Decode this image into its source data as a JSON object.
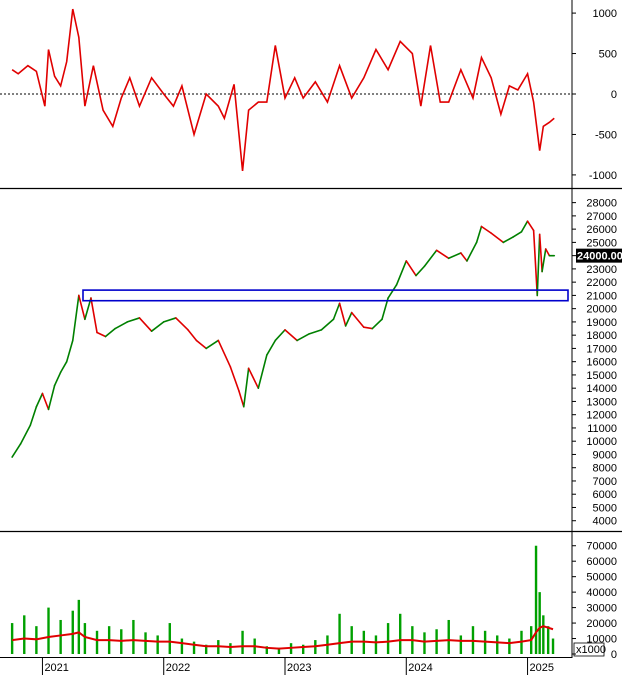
{
  "chart_data": [
    {
      "panel": "oscillator",
      "type": "line",
      "color": "#e00000",
      "yticks": [
        1000,
        500,
        0,
        -500,
        -1000
      ],
      "ylim": [
        -1100,
        1100
      ],
      "zero_line": "dashed",
      "x": [
        2020.75,
        2020.8,
        2020.88,
        2020.95,
        2021.02,
        2021.05,
        2021.1,
        2021.15,
        2021.2,
        2021.25,
        2021.3,
        2021.35,
        2021.42,
        2021.5,
        2021.58,
        2021.65,
        2021.72,
        2021.8,
        2021.9,
        2022.0,
        2022.08,
        2022.15,
        2022.25,
        2022.35,
        2022.45,
        2022.5,
        2022.58,
        2022.65,
        2022.7,
        2022.78,
        2022.85,
        2022.92,
        2023.0,
        2023.08,
        2023.15,
        2023.25,
        2023.35,
        2023.45,
        2023.55,
        2023.65,
        2023.75,
        2023.85,
        2023.95,
        2024.05,
        2024.12,
        2024.2,
        2024.28,
        2024.35,
        2024.45,
        2024.55,
        2024.62,
        2024.7,
        2024.78,
        2024.85,
        2024.92,
        2025.0,
        2025.05,
        2025.1,
        2025.13,
        2025.18,
        2025.22
      ],
      "values": [
        300,
        250,
        350,
        280,
        -150,
        550,
        220,
        100,
        400,
        1050,
        700,
        -150,
        350,
        -200,
        -400,
        -50,
        200,
        -150,
        200,
        0,
        -150,
        100,
        -500,
        0,
        -150,
        -300,
        120,
        -950,
        -200,
        -100,
        -100,
        600,
        -50,
        200,
        -50,
        150,
        -100,
        350,
        -50,
        200,
        550,
        300,
        650,
        500,
        -150,
        600,
        -100,
        -100,
        300,
        -50,
        450,
        200,
        -250,
        100,
        50,
        250,
        -100,
        -700,
        -400,
        -350,
        -300
      ]
    },
    {
      "panel": "price",
      "type": "line",
      "color": "#008000",
      "down_color": "#e00000",
      "yticks": [
        28000,
        27000,
        26000,
        25000,
        24000,
        23000,
        22000,
        21000,
        20000,
        19000,
        18000,
        17000,
        16000,
        15000,
        14000,
        13000,
        12000,
        11000,
        10000,
        9000,
        8000,
        7000,
        6000,
        5000,
        4000
      ],
      "ylim": [
        3300,
        28500
      ],
      "last_value_label": "24000.00",
      "support_zone": [
        20600,
        21400
      ],
      "x": [
        2020.75,
        2020.82,
        2020.9,
        2020.95,
        2021.0,
        2021.05,
        2021.1,
        2021.15,
        2021.2,
        2021.25,
        2021.3,
        2021.35,
        2021.4,
        2021.45,
        2021.52,
        2021.6,
        2021.7,
        2021.8,
        2021.9,
        2022.0,
        2022.1,
        2022.2,
        2022.27,
        2022.35,
        2022.45,
        2022.55,
        2022.62,
        2022.66,
        2022.7,
        2022.78,
        2022.85,
        2022.92,
        2023.0,
        2023.1,
        2023.2,
        2023.3,
        2023.4,
        2023.45,
        2023.5,
        2023.55,
        2023.65,
        2023.72,
        2023.8,
        2023.85,
        2023.92,
        2024.0,
        2024.08,
        2024.15,
        2024.25,
        2024.35,
        2024.45,
        2024.5,
        2024.58,
        2024.62,
        2024.7,
        2024.8,
        2024.88,
        2024.95,
        2025.0,
        2025.05,
        2025.08,
        2025.1,
        2025.12,
        2025.15,
        2025.18,
        2025.22
      ],
      "values": [
        8800,
        9800,
        11200,
        12600,
        13600,
        12400,
        14200,
        15200,
        16000,
        17600,
        21000,
        19200,
        20800,
        18200,
        17900,
        18500,
        19000,
        19300,
        18300,
        19000,
        19300,
        18400,
        17600,
        17000,
        17600,
        15600,
        13800,
        12600,
        15500,
        14000,
        16500,
        17600,
        18400,
        17600,
        18100,
        18400,
        19200,
        20400,
        18700,
        19700,
        18600,
        18500,
        19200,
        20800,
        21800,
        23600,
        22500,
        23200,
        24400,
        23800,
        24200,
        23600,
        25000,
        26200,
        25700,
        25000,
        25400,
        25800,
        26600,
        25900,
        21000,
        25600,
        22800,
        24500,
        24000,
        24000
      ]
    },
    {
      "panel": "volume",
      "type": "bar",
      "bar_color": "#00a000",
      "ma_color": "#e00000",
      "yticks": [
        70000,
        60000,
        50000,
        40000,
        30000,
        20000,
        10000,
        0
      ],
      "ylim": [
        0,
        75000
      ],
      "unit_label": "x1000",
      "x": [
        2020.75,
        2020.85,
        2020.95,
        2021.05,
        2021.15,
        2021.25,
        2021.3,
        2021.35,
        2021.45,
        2021.55,
        2021.65,
        2021.75,
        2021.85,
        2021.95,
        2022.05,
        2022.15,
        2022.25,
        2022.35,
        2022.45,
        2022.55,
        2022.65,
        2022.75,
        2022.85,
        2022.95,
        2023.05,
        2023.15,
        2023.25,
        2023.35,
        2023.45,
        2023.55,
        2023.65,
        2023.75,
        2023.85,
        2023.95,
        2024.05,
        2024.15,
        2024.25,
        2024.35,
        2024.45,
        2024.55,
        2024.65,
        2024.75,
        2024.85,
        2024.95,
        2025.03,
        2025.07,
        2025.1,
        2025.13,
        2025.17,
        2025.21
      ],
      "values": [
        20000,
        25000,
        18000,
        30000,
        22000,
        28000,
        35000,
        20000,
        15000,
        18000,
        16000,
        22000,
        14000,
        12000,
        20000,
        10000,
        8000,
        6000,
        9000,
        7000,
        15000,
        10000,
        5000,
        4000,
        7000,
        6000,
        9000,
        12000,
        26000,
        18000,
        15000,
        12000,
        20000,
        26000,
        18000,
        14000,
        16000,
        22000,
        12000,
        18000,
        15000,
        12000,
        10000,
        15000,
        18000,
        70000,
        40000,
        25000,
        18000,
        10000
      ],
      "ma": [
        9000,
        10000,
        9500,
        11000,
        12000,
        13000,
        14000,
        11000,
        9000,
        9000,
        8500,
        9000,
        8500,
        8000,
        8000,
        7000,
        6000,
        5000,
        5000,
        4500,
        5000,
        5000,
        4000,
        3500,
        4000,
        4500,
        5000,
        6000,
        7000,
        8000,
        8000,
        7500,
        8000,
        9000,
        9000,
        8000,
        8500,
        9000,
        8500,
        8500,
        8000,
        7500,
        7000,
        8000,
        9000,
        14000,
        17000,
        18000,
        17000,
        16000
      ]
    }
  ],
  "x_axis": {
    "labels": [
      "2021",
      "2022",
      "2023",
      "2024",
      "2025"
    ],
    "positions": [
      2021,
      2022,
      2023,
      2024,
      2025
    ],
    "range": [
      2020.65,
      2025.35
    ]
  }
}
